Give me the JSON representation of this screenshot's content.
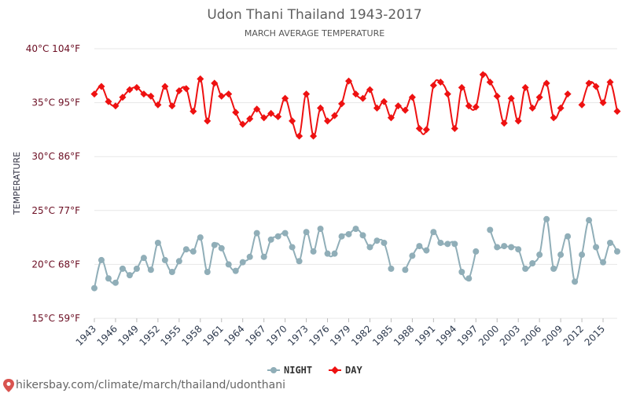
{
  "chart_data": {
    "type": "line",
    "title": "Udon Thani Thailand 1943-2017",
    "subtitle": "MARCH AVERAGE TEMPERATURE",
    "ylabel": "TEMPERATURE",
    "ylim": [
      15,
      40
    ],
    "yticks": [
      {
        "value": 15,
        "label": "15°C 59°F"
      },
      {
        "value": 20,
        "label": "20°C 68°F"
      },
      {
        "value": 25,
        "label": "25°C 77°F"
      },
      {
        "value": 30,
        "label": "30°C 86°F"
      },
      {
        "value": 35,
        "label": "35°C 95°F"
      },
      {
        "value": 40,
        "label": "40°C 104°F"
      }
    ],
    "xlim": [
      1943,
      2017
    ],
    "xticks": [
      1943,
      1946,
      1949,
      1952,
      1955,
      1958,
      1961,
      1964,
      1967,
      1970,
      1973,
      1976,
      1979,
      1982,
      1985,
      1988,
      1991,
      1994,
      1997,
      2000,
      2003,
      2006,
      2009,
      2012,
      2015
    ],
    "x": [
      1943,
      1944,
      1945,
      1946,
      1947,
      1948,
      1949,
      1950,
      1951,
      1952,
      1953,
      1954,
      1955,
      1956,
      1957,
      1958,
      1959,
      1960,
      1961,
      1962,
      1963,
      1964,
      1965,
      1966,
      1967,
      1968,
      1969,
      1970,
      1971,
      1972,
      1973,
      1974,
      1975,
      1976,
      1977,
      1978,
      1979,
      1980,
      1981,
      1982,
      1983,
      1984,
      1985,
      1986,
      1987,
      1988,
      1989,
      1990,
      1991,
      1992,
      1993,
      1994,
      1995,
      1996,
      1997,
      1998,
      1999,
      2000,
      2001,
      2002,
      2003,
      2004,
      2005,
      2006,
      2007,
      2008,
      2009,
      2010,
      2011,
      2012,
      2013,
      2014,
      2015,
      2016,
      2017
    ],
    "series": [
      {
        "name": "NIGHT",
        "color": "#90aeb8",
        "values": [
          17.8,
          20.4,
          18.7,
          18.3,
          19.6,
          19.0,
          19.6,
          20.6,
          19.5,
          22.0,
          20.4,
          19.3,
          20.3,
          21.4,
          21.2,
          22.5,
          19.3,
          21.8,
          21.5,
          20.0,
          19.4,
          20.2,
          20.7,
          22.9,
          20.7,
          22.3,
          22.6,
          22.9,
          21.6,
          20.3,
          23.0,
          21.2,
          23.3,
          21.0,
          21.0,
          22.6,
          22.8,
          23.3,
          22.7,
          21.6,
          22.2,
          22.0,
          19.6,
          null,
          19.5,
          20.8,
          21.7,
          21.3,
          23.0,
          22.0,
          21.9,
          21.9,
          19.3,
          18.7,
          21.2,
          null,
          23.2,
          21.6,
          21.7,
          21.6,
          21.4,
          19.6,
          20.1,
          20.9,
          24.2,
          19.6,
          20.9,
          22.6,
          18.4,
          20.9,
          24.1,
          21.6,
          20.2,
          22.0,
          21.2
        ]
      },
      {
        "name": "DAY",
        "color": "#ee1111",
        "values": [
          35.8,
          36.5,
          35.1,
          34.7,
          35.5,
          36.2,
          36.4,
          35.8,
          35.6,
          34.8,
          36.5,
          34.7,
          36.1,
          36.3,
          34.2,
          37.2,
          33.3,
          36.8,
          35.6,
          35.8,
          34.1,
          33.0,
          33.5,
          34.4,
          33.6,
          34.0,
          33.7,
          35.4,
          33.3,
          31.9,
          35.8,
          31.9,
          34.5,
          33.3,
          33.8,
          34.9,
          37.0,
          35.8,
          35.4,
          36.2,
          34.5,
          35.1,
          33.6,
          34.7,
          34.3,
          35.5,
          32.6,
          32.5,
          36.6,
          36.9,
          35.8,
          32.6,
          36.4,
          34.7,
          34.6,
          37.6,
          36.9,
          35.6,
          33.1,
          35.4,
          33.3,
          36.4,
          34.5,
          35.5,
          36.8,
          33.6,
          34.5,
          35.8,
          null,
          34.8,
          36.8,
          36.5,
          35.0,
          36.9,
          34.2
        ]
      }
    ],
    "legend": {
      "position": "bottom-center"
    },
    "grid": true
  },
  "footer": {
    "url_text": "hikersbay.com/climate/march/thailand/udonthani"
  }
}
